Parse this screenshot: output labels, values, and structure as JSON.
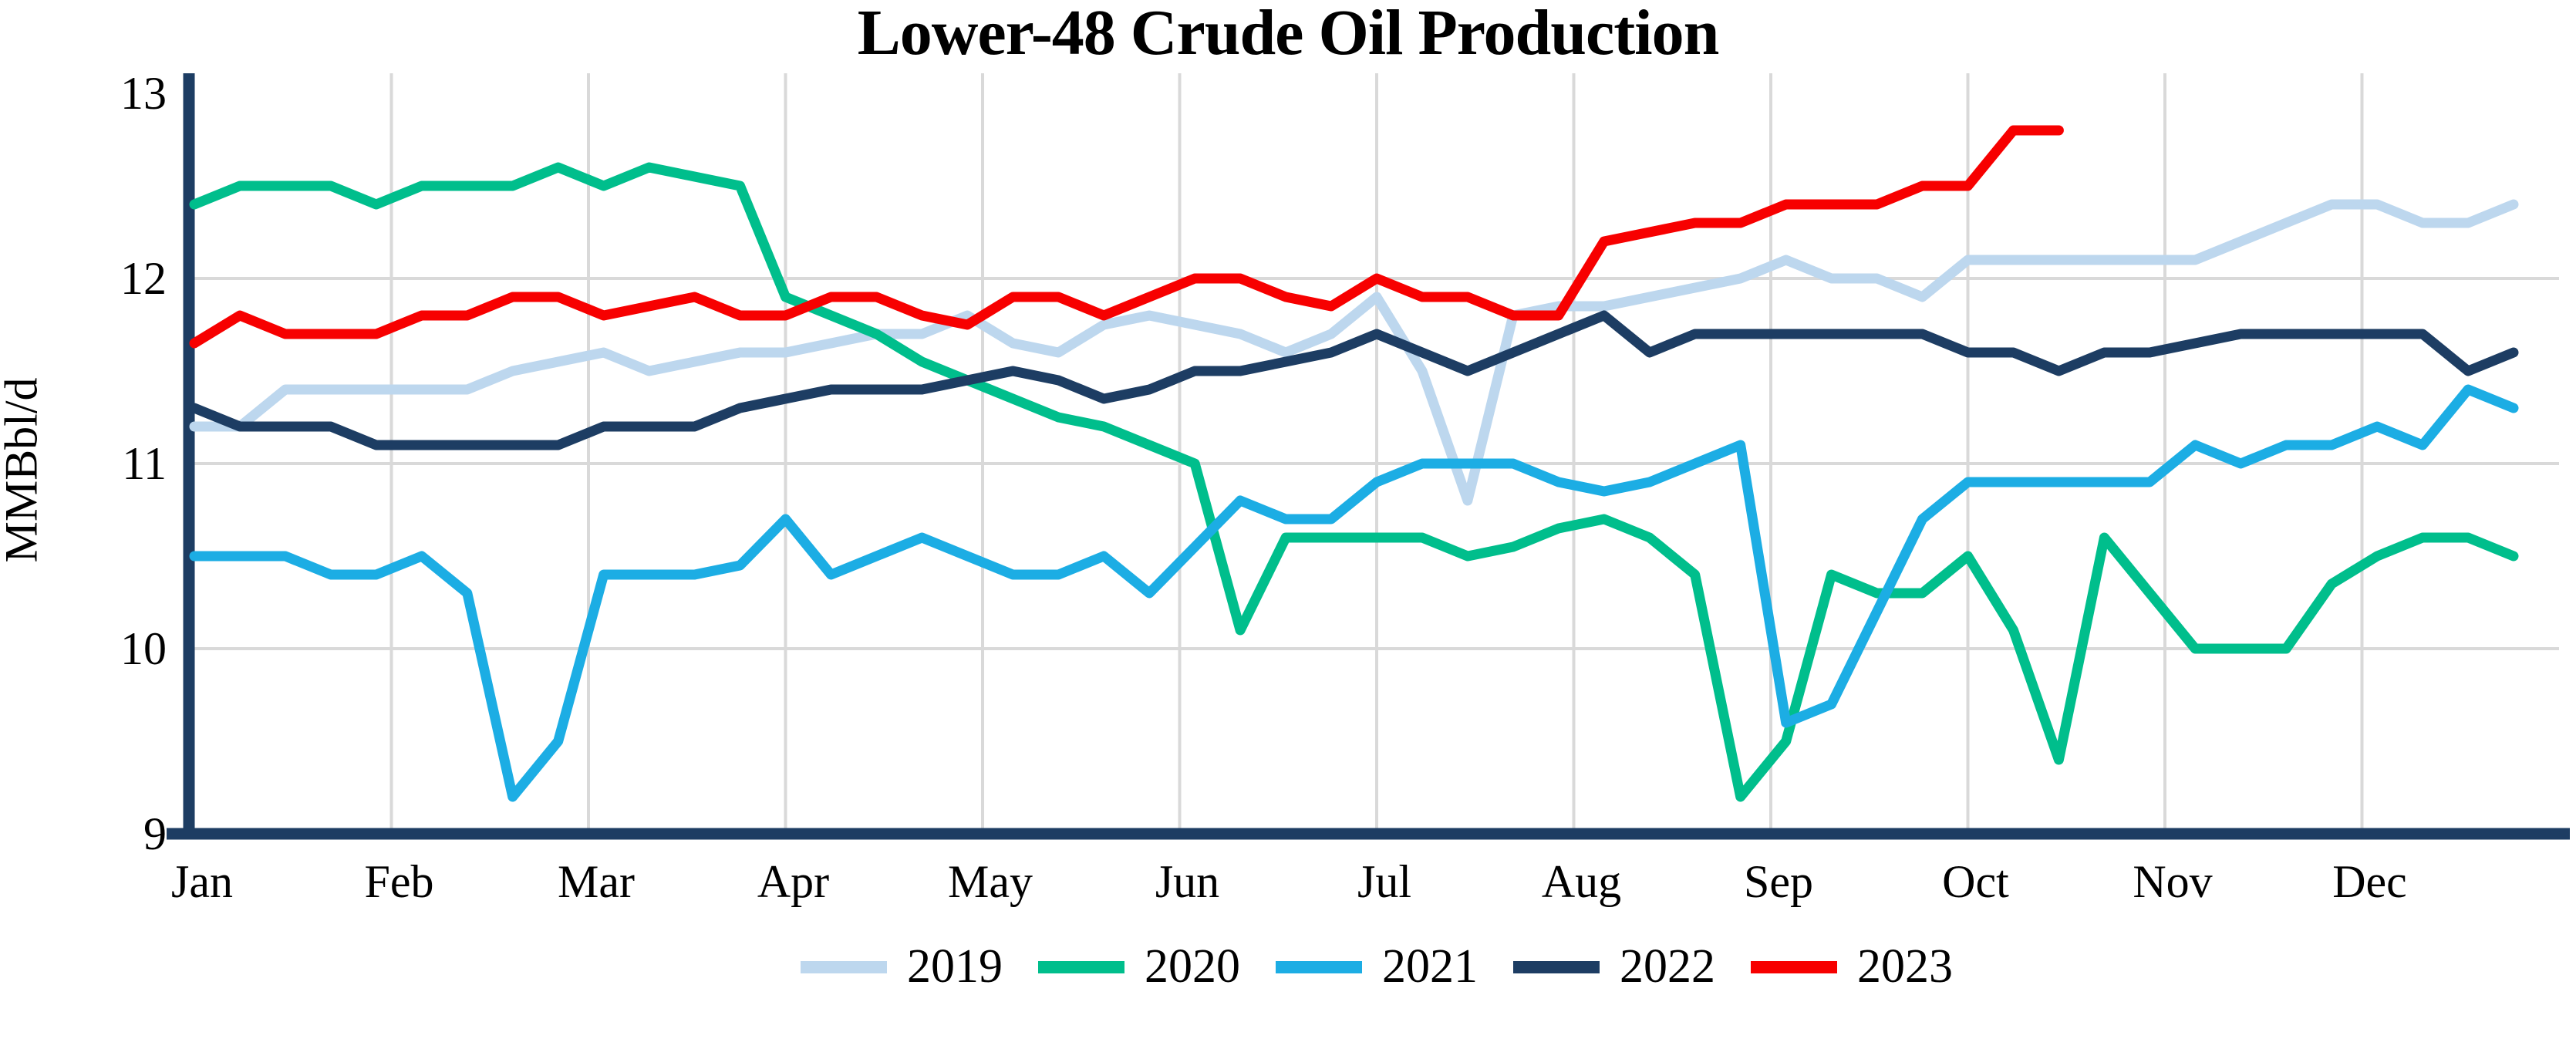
{
  "title": "Lower-48 Crude Oil Production",
  "y_axis": {
    "label": "MMBbl/d",
    "tick_labels": [
      "13",
      "12",
      "11",
      "10",
      "9"
    ],
    "min": 9,
    "max": 13
  },
  "x_axis": {
    "tick_labels": [
      "Jan",
      "Feb",
      "Mar",
      "Apr",
      "May",
      "Jun",
      "Jul",
      "Aug",
      "Sep",
      "Oct",
      "Nov",
      "Dec"
    ]
  },
  "colors": {
    "axis": "#1D3D63",
    "gridline": "#D9D9D9",
    "background": "#FFFFFF",
    "title_text": "#000000"
  },
  "legend": {
    "items": [
      {
        "label": "2019",
        "color": "#BDD7EE"
      },
      {
        "label": "2020",
        "color": "#00BE8C"
      },
      {
        "label": "2021",
        "color": "#1CADE4"
      },
      {
        "label": "2022",
        "color": "#1D3D63"
      },
      {
        "label": "2023",
        "color": "#F70000"
      }
    ]
  },
  "chart_data": {
    "type": "line",
    "title": "Lower-48 Crude Oil Production",
    "xlabel": "",
    "ylabel": "MMBbl/d",
    "ylim": [
      9,
      13
    ],
    "y_ticks": [
      13,
      12,
      11,
      10,
      9
    ],
    "grid": true,
    "legend_position": "bottom",
    "x_unit": "week of year",
    "weeks_per_year": 52,
    "x_tick_labels": [
      "Jan",
      "Feb",
      "Mar",
      "Apr",
      "May",
      "Jun",
      "Jul",
      "Aug",
      "Sep",
      "Oct",
      "Nov",
      "Dec"
    ],
    "series": [
      {
        "name": "2019",
        "color": "#BDD7EE",
        "values": [
          11.2,
          11.2,
          11.4,
          11.4,
          11.4,
          11.4,
          11.4,
          11.5,
          11.55,
          11.6,
          11.5,
          11.55,
          11.6,
          11.6,
          11.65,
          11.7,
          11.7,
          11.8,
          11.65,
          11.6,
          11.75,
          11.8,
          11.75,
          11.7,
          11.6,
          11.7,
          11.9,
          11.5,
          10.8,
          11.8,
          11.85,
          11.85,
          11.9,
          11.95,
          12.0,
          12.1,
          12.0,
          12.0,
          11.9,
          12.1,
          12.1,
          12.1,
          12.1,
          12.1,
          12.1,
          12.2,
          12.3,
          12.4,
          12.4,
          12.3,
          12.3,
          12.4
        ]
      },
      {
        "name": "2020",
        "color": "#00BE8C",
        "values": [
          12.4,
          12.5,
          12.5,
          12.5,
          12.4,
          12.5,
          12.5,
          12.5,
          12.6,
          12.5,
          12.6,
          12.55,
          12.5,
          11.9,
          11.8,
          11.7,
          11.55,
          11.45,
          11.35,
          11.25,
          11.2,
          11.1,
          11.0,
          10.1,
          10.6,
          10.6,
          10.6,
          10.6,
          10.5,
          10.55,
          10.65,
          10.7,
          10.6,
          10.4,
          9.2,
          9.5,
          10.4,
          10.3,
          10.3,
          10.5,
          10.1,
          9.4,
          10.6,
          10.3,
          10.0,
          10.0,
          10.0,
          10.35,
          10.5,
          10.6,
          10.6,
          10.5
        ]
      },
      {
        "name": "2021",
        "color": "#1CADE4",
        "values": [
          10.5,
          10.5,
          10.5,
          10.4,
          10.4,
          10.5,
          10.3,
          9.2,
          9.5,
          10.4,
          10.4,
          10.4,
          10.45,
          10.7,
          10.4,
          10.5,
          10.6,
          10.5,
          10.4,
          10.4,
          10.5,
          10.3,
          10.55,
          10.8,
          10.7,
          10.7,
          10.9,
          11.0,
          11.0,
          11.0,
          10.9,
          10.85,
          10.9,
          11.0,
          11.1,
          9.6,
          9.7,
          10.2,
          10.7,
          10.9,
          10.9,
          10.9,
          10.9,
          10.9,
          11.1,
          11.0,
          11.1,
          11.1,
          11.2,
          11.1,
          11.4,
          11.3
        ]
      },
      {
        "name": "2022",
        "color": "#1D3D63",
        "values": [
          11.3,
          11.2,
          11.2,
          11.2,
          11.1,
          11.1,
          11.1,
          11.1,
          11.1,
          11.2,
          11.2,
          11.2,
          11.3,
          11.35,
          11.4,
          11.4,
          11.4,
          11.45,
          11.5,
          11.45,
          11.35,
          11.4,
          11.5,
          11.5,
          11.55,
          11.6,
          11.7,
          11.6,
          11.5,
          11.6,
          11.7,
          11.8,
          11.6,
          11.7,
          11.7,
          11.7,
          11.7,
          11.7,
          11.7,
          11.6,
          11.6,
          11.5,
          11.6,
          11.6,
          11.65,
          11.7,
          11.7,
          11.7,
          11.7,
          11.7,
          11.5,
          11.6
        ]
      },
      {
        "name": "2023",
        "color": "#F70000",
        "values": [
          11.65,
          11.8,
          11.7,
          11.7,
          11.7,
          11.8,
          11.8,
          11.9,
          11.9,
          11.8,
          11.85,
          11.9,
          11.8,
          11.8,
          11.9,
          11.9,
          11.8,
          11.75,
          11.9,
          11.9,
          11.8,
          11.9,
          12.0,
          12.0,
          11.9,
          11.85,
          12.0,
          11.9,
          11.9,
          11.8,
          11.8,
          12.2,
          12.25,
          12.3,
          12.3,
          12.4,
          12.4,
          12.4,
          12.5,
          12.5,
          12.8,
          12.8
        ]
      }
    ]
  }
}
